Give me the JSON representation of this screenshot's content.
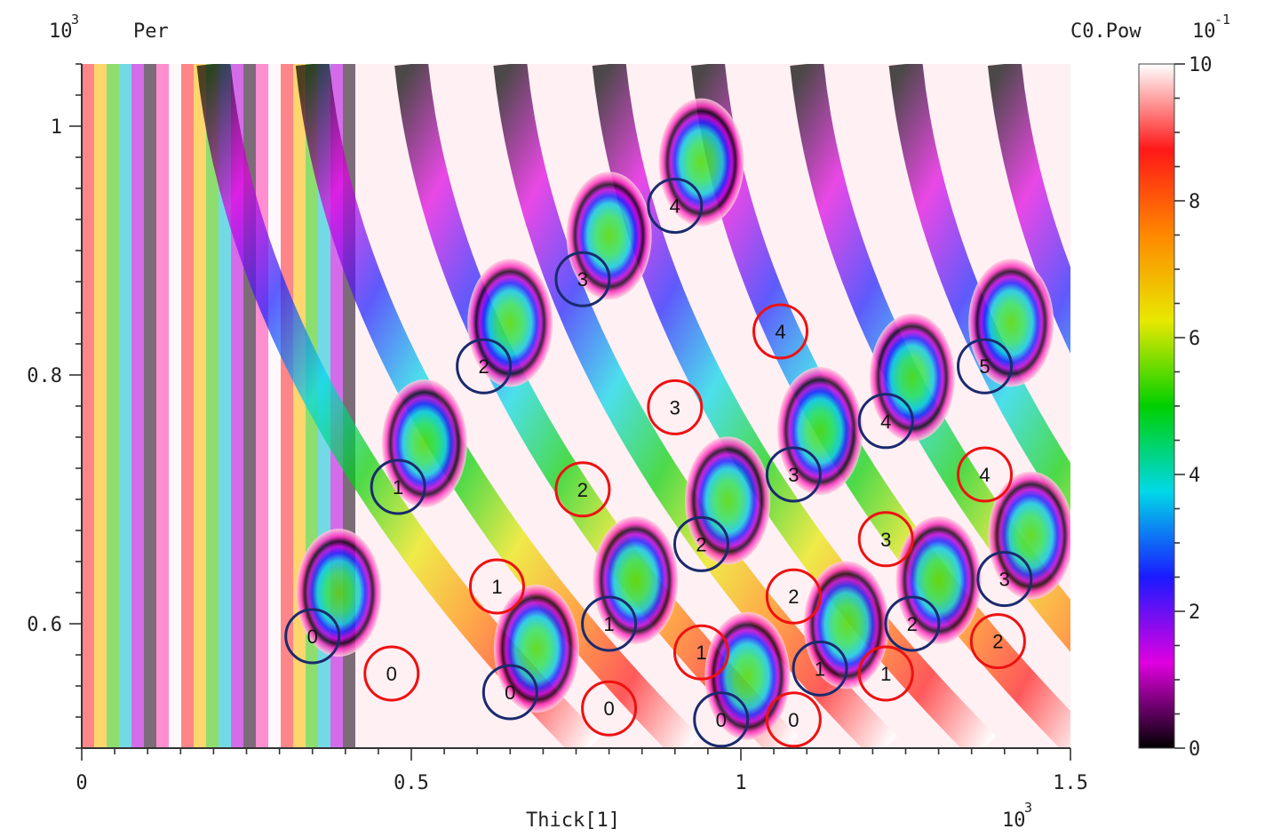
{
  "chart_data": {
    "type": "heatmap",
    "title": "",
    "xlabel": "Thick[1]",
    "ylabel": "Per",
    "x_exponent": "10",
    "x_exponent_power": "3",
    "y_exponent": "10",
    "y_exponent_power": "3",
    "xlim": [
      0,
      1.5
    ],
    "ylim": [
      0.5,
      1.05
    ],
    "x_ticks": [
      {
        "v": 0,
        "label": "0"
      },
      {
        "v": 0.5,
        "label": "0.5"
      },
      {
        "v": 1,
        "label": "1"
      },
      {
        "v": 1.5,
        "label": "1.5"
      }
    ],
    "y_ticks": [
      {
        "v": 0.6,
        "label": "0.6"
      },
      {
        "v": 0.8,
        "label": "0.8"
      },
      {
        "v": 1,
        "label": "1"
      }
    ],
    "colorbar": {
      "label": "C0.Pow",
      "exponent": "10",
      "exponent_power": "-1",
      "range": [
        0,
        10
      ],
      "ticks": [
        {
          "v": 0,
          "label": "0"
        },
        {
          "v": 2,
          "label": "2"
        },
        {
          "v": 4,
          "label": "4"
        },
        {
          "v": 6,
          "label": "6"
        },
        {
          "v": 8,
          "label": "8"
        },
        {
          "v": 10,
          "label": "10"
        }
      ],
      "colors": [
        "#000000",
        "#e000e0",
        "#1a1aff",
        "#00d8e8",
        "#00d000",
        "#e8e800",
        "#ff8800",
        "#ff1818",
        "#ffffff"
      ]
    },
    "annotations": {
      "blue_circles": [
        {
          "x": 0.35,
          "y": 0.59,
          "text": "0"
        },
        {
          "x": 0.65,
          "y": 0.545,
          "text": "0"
        },
        {
          "x": 0.97,
          "y": 0.523,
          "text": "0"
        },
        {
          "x": 0.48,
          "y": 0.71,
          "text": "1"
        },
        {
          "x": 0.8,
          "y": 0.6,
          "text": "1"
        },
        {
          "x": 1.12,
          "y": 0.564,
          "text": "1"
        },
        {
          "x": 0.61,
          "y": 0.807,
          "text": "2"
        },
        {
          "x": 0.94,
          "y": 0.664,
          "text": "2"
        },
        {
          "x": 1.26,
          "y": 0.6,
          "text": "2"
        },
        {
          "x": 0.76,
          "y": 0.877,
          "text": "3"
        },
        {
          "x": 1.08,
          "y": 0.72,
          "text": "3"
        },
        {
          "x": 1.4,
          "y": 0.636,
          "text": "3"
        },
        {
          "x": 0.9,
          "y": 0.936,
          "text": "4"
        },
        {
          "x": 1.22,
          "y": 0.763,
          "text": "4"
        },
        {
          "x": 1.37,
          "y": 0.807,
          "text": "5"
        }
      ],
      "red_circles": [
        {
          "x": 0.47,
          "y": 0.56,
          "text": "0"
        },
        {
          "x": 0.8,
          "y": 0.532,
          "text": "0"
        },
        {
          "x": 1.08,
          "y": 0.523,
          "text": "0"
        },
        {
          "x": 0.63,
          "y": 0.63,
          "text": "1"
        },
        {
          "x": 0.94,
          "y": 0.577,
          "text": "1"
        },
        {
          "x": 1.22,
          "y": 0.56,
          "text": "1"
        },
        {
          "x": 0.76,
          "y": 0.708,
          "text": "2"
        },
        {
          "x": 1.08,
          "y": 0.622,
          "text": "2"
        },
        {
          "x": 1.39,
          "y": 0.586,
          "text": "2"
        },
        {
          "x": 0.9,
          "y": 0.774,
          "text": "3"
        },
        {
          "x": 1.22,
          "y": 0.668,
          "text": "3"
        },
        {
          "x": 1.06,
          "y": 0.835,
          "text": "4"
        },
        {
          "x": 1.37,
          "y": 0.72,
          "text": "4"
        }
      ],
      "blue_color": "#1a2a6e",
      "red_color": "#ee1111"
    }
  }
}
